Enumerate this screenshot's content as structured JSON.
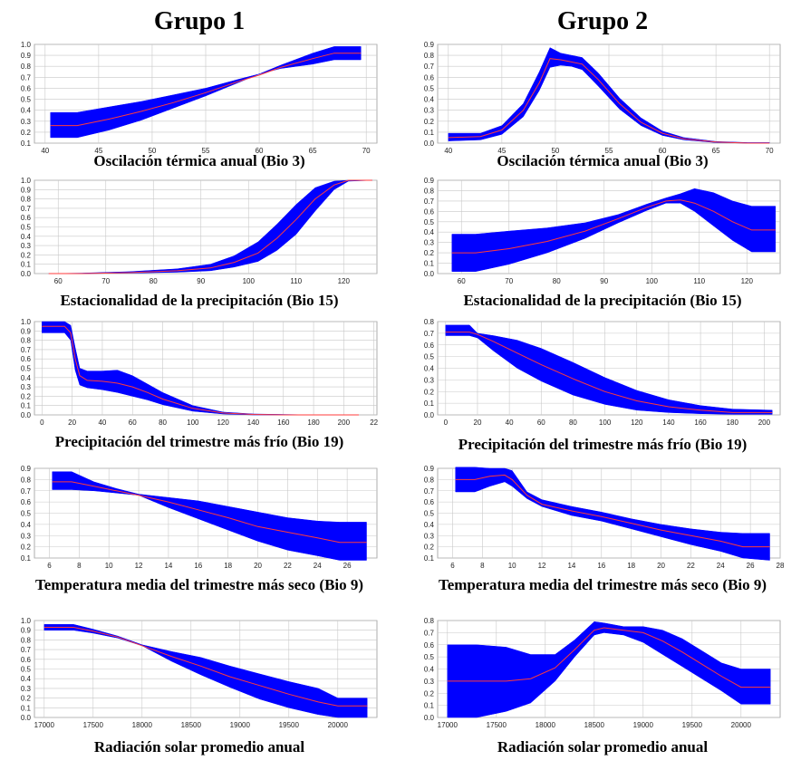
{
  "groups": [
    {
      "title": "Grupo 1"
    },
    {
      "title": "Grupo 2"
    }
  ],
  "colors": {
    "band": "#0000ff",
    "mean_line": "#ff3b3b",
    "grid": "#c8c8c8",
    "frame": "#999999"
  },
  "chart_data": [
    {
      "type": "area",
      "group": "Grupo 1",
      "label": "Oscilación térmica anual (Bio 3)",
      "xlim": [
        39,
        71
      ],
      "ylim": [
        0.1,
        1.0
      ],
      "xticks": [
        "40",
        "45",
        "50",
        "55",
        "60",
        "65",
        "70"
      ],
      "yticks": [
        "0.1",
        "0.2",
        "0.3",
        "0.4",
        "0.5",
        "0.6",
        "0.7",
        "0.8",
        "0.9",
        "1.0"
      ],
      "x": [
        40.5,
        43,
        46,
        49,
        52,
        55,
        58,
        60,
        62,
        65,
        67,
        69.5
      ],
      "mean": [
        0.26,
        0.26,
        0.32,
        0.39,
        0.47,
        0.56,
        0.66,
        0.72,
        0.79,
        0.87,
        0.92,
        0.92
      ],
      "lower": [
        0.15,
        0.15,
        0.22,
        0.31,
        0.42,
        0.53,
        0.65,
        0.73,
        0.78,
        0.82,
        0.86,
        0.86
      ],
      "upper": [
        0.38,
        0.38,
        0.43,
        0.48,
        0.54,
        0.6,
        0.68,
        0.73,
        0.81,
        0.92,
        0.98,
        0.98
      ]
    },
    {
      "type": "area",
      "group": "Grupo 2",
      "label": "Oscilación térmica anual  (Bio 3)",
      "xlim": [
        39,
        71
      ],
      "ylim": [
        0.0,
        0.9
      ],
      "xticks": [
        "40",
        "45",
        "50",
        "55",
        "60",
        "65",
        "70"
      ],
      "yticks": [
        "0.0",
        "0.1",
        "0.2",
        "0.3",
        "0.4",
        "0.5",
        "0.6",
        "0.7",
        "0.8",
        "0.9"
      ],
      "x": [
        40,
        43,
        45,
        47,
        48.5,
        49.5,
        50.5,
        51.5,
        52.5,
        54,
        56,
        58,
        60,
        62,
        65,
        68,
        70
      ],
      "mean": [
        0.05,
        0.06,
        0.12,
        0.3,
        0.55,
        0.77,
        0.76,
        0.74,
        0.72,
        0.58,
        0.36,
        0.19,
        0.09,
        0.04,
        0.01,
        0.0,
        0.0
      ],
      "lower": [
        0.02,
        0.03,
        0.08,
        0.24,
        0.48,
        0.69,
        0.71,
        0.7,
        0.67,
        0.52,
        0.31,
        0.16,
        0.07,
        0.03,
        0.005,
        0.0,
        0.0
      ],
      "upper": [
        0.09,
        0.09,
        0.16,
        0.36,
        0.65,
        0.87,
        0.82,
        0.8,
        0.78,
        0.64,
        0.41,
        0.23,
        0.11,
        0.05,
        0.015,
        0.005,
        0.005
      ]
    },
    {
      "type": "area",
      "group": "Grupo 1",
      "label": "Estacionalidad de la precipitación (Bio 15)",
      "xlim": [
        55,
        127
      ],
      "ylim": [
        0.0,
        1.0
      ],
      "xticks": [
        "60",
        "70",
        "80",
        "90",
        "100",
        "110",
        "120"
      ],
      "yticks": [
        "0.0",
        "0.1",
        "0.2",
        "0.3",
        "0.4",
        "0.5",
        "0.6",
        "0.7",
        "0.8",
        "0.9",
        "1.0"
      ],
      "x": [
        58,
        65,
        75,
        85,
        92,
        97,
        102,
        106,
        110,
        114,
        118,
        121,
        126
      ],
      "mean": [
        0.0,
        0.0,
        0.01,
        0.03,
        0.06,
        0.12,
        0.22,
        0.38,
        0.58,
        0.8,
        0.95,
        1.0,
        1.0
      ],
      "lower": [
        0.0,
        0.0,
        0.005,
        0.015,
        0.03,
        0.07,
        0.13,
        0.25,
        0.42,
        0.67,
        0.9,
        0.99,
        1.0
      ],
      "upper": [
        0.0,
        0.005,
        0.02,
        0.05,
        0.1,
        0.19,
        0.34,
        0.53,
        0.74,
        0.92,
        0.99,
        1.0,
        1.0
      ]
    },
    {
      "type": "area",
      "group": "Grupo 2",
      "label": "Estacionalidad de la precipitación (Bio 15)",
      "xlim": [
        55,
        127
      ],
      "ylim": [
        0.0,
        0.9
      ],
      "xticks": [
        "60",
        "70",
        "80",
        "90",
        "100",
        "110",
        "120"
      ],
      "yticks": [
        "0.0",
        "0.1",
        "0.2",
        "0.3",
        "0.4",
        "0.5",
        "0.6",
        "0.7",
        "0.8",
        "0.9"
      ],
      "x": [
        58,
        63,
        70,
        78,
        86,
        93,
        99,
        103,
        106,
        109,
        113,
        117,
        121,
        126
      ],
      "mean": [
        0.2,
        0.2,
        0.24,
        0.31,
        0.41,
        0.53,
        0.64,
        0.7,
        0.71,
        0.68,
        0.6,
        0.5,
        0.42,
        0.42
      ],
      "lower": [
        0.02,
        0.02,
        0.09,
        0.2,
        0.34,
        0.49,
        0.61,
        0.68,
        0.68,
        0.6,
        0.46,
        0.32,
        0.21,
        0.21
      ],
      "upper": [
        0.38,
        0.38,
        0.41,
        0.44,
        0.49,
        0.57,
        0.67,
        0.73,
        0.77,
        0.82,
        0.78,
        0.7,
        0.65,
        0.65
      ]
    },
    {
      "type": "area",
      "group": "Grupo 1",
      "label": "Precipitación del trimestre más frío (Bio 19)",
      "xlim": [
        -5,
        222
      ],
      "ylim": [
        0.0,
        1.0
      ],
      "xticks": [
        "0",
        "20",
        "40",
        "60",
        "80",
        "100",
        "120",
        "140",
        "160",
        "180",
        "200",
        "22"
      ],
      "yticks": [
        "0.0",
        "0.1",
        "0.2",
        "0.3",
        "0.4",
        "0.5",
        "0.6",
        "0.7",
        "0.8",
        "0.9",
        "1.0"
      ],
      "x": [
        0,
        15,
        19,
        22,
        25,
        30,
        40,
        50,
        60,
        70,
        80,
        100,
        120,
        140,
        160,
        180,
        210
      ],
      "mean": [
        0.95,
        0.95,
        0.88,
        0.6,
        0.42,
        0.37,
        0.36,
        0.34,
        0.3,
        0.24,
        0.17,
        0.07,
        0.02,
        0.005,
        0.0,
        0.0,
        0.0
      ],
      "lower": [
        0.88,
        0.88,
        0.8,
        0.48,
        0.32,
        0.29,
        0.27,
        0.24,
        0.2,
        0.16,
        0.11,
        0.04,
        0.01,
        0.0,
        0.0,
        0.0,
        0.0
      ],
      "upper": [
        1.0,
        1.0,
        0.96,
        0.72,
        0.5,
        0.47,
        0.47,
        0.48,
        0.42,
        0.33,
        0.24,
        0.1,
        0.03,
        0.01,
        0.005,
        0.0,
        0.0
      ]
    },
    {
      "type": "area",
      "group": "Grupo 2",
      "label": "Precipitación del  trimestre más frío (Bio 19)",
      "xlim": [
        -5,
        210
      ],
      "ylim": [
        0.0,
        0.8
      ],
      "xticks": [
        "0",
        "20",
        "40",
        "60",
        "80",
        "100",
        "120",
        "140",
        "160",
        "180",
        "200"
      ],
      "yticks": [
        "0.0",
        "0.1",
        "0.2",
        "0.3",
        "0.4",
        "0.5",
        "0.6",
        "0.7",
        "0.8"
      ],
      "x": [
        0,
        15,
        20,
        30,
        45,
        60,
        80,
        100,
        120,
        140,
        160,
        180,
        205
      ],
      "mean": [
        0.71,
        0.71,
        0.69,
        0.63,
        0.53,
        0.43,
        0.31,
        0.2,
        0.12,
        0.07,
        0.04,
        0.02,
        0.02
      ],
      "lower": [
        0.68,
        0.68,
        0.66,
        0.55,
        0.4,
        0.29,
        0.17,
        0.09,
        0.04,
        0.02,
        0.01,
        0.005,
        0.005
      ],
      "upper": [
        0.77,
        0.77,
        0.7,
        0.68,
        0.64,
        0.57,
        0.45,
        0.32,
        0.21,
        0.13,
        0.08,
        0.05,
        0.04
      ]
    },
    {
      "type": "area",
      "group": "Grupo 1",
      "label": "Temperatura media del trimestre más seco (Bio 9)",
      "xlim": [
        5,
        28
      ],
      "ylim": [
        0.1,
        0.9
      ],
      "xticks": [
        "6",
        "8",
        "10",
        "12",
        "14",
        "16",
        "18",
        "20",
        "22",
        "24",
        "26"
      ],
      "yticks": [
        "0.1",
        "0.2",
        "0.3",
        "0.4",
        "0.5",
        "0.6",
        "0.7",
        "0.8",
        "0.9"
      ],
      "x": [
        6.2,
        7.5,
        9,
        10.5,
        12,
        14,
        16,
        18,
        20,
        22,
        24,
        25.5,
        27.3
      ],
      "mean": [
        0.78,
        0.78,
        0.74,
        0.7,
        0.66,
        0.6,
        0.53,
        0.46,
        0.38,
        0.33,
        0.28,
        0.24,
        0.24
      ],
      "lower": [
        0.71,
        0.71,
        0.7,
        0.68,
        0.66,
        0.55,
        0.45,
        0.35,
        0.25,
        0.17,
        0.12,
        0.08,
        0.08
      ],
      "upper": [
        0.87,
        0.87,
        0.78,
        0.72,
        0.67,
        0.64,
        0.61,
        0.56,
        0.51,
        0.46,
        0.43,
        0.42,
        0.42
      ]
    },
    {
      "type": "area",
      "group": "Grupo 2",
      "label": "Temperatura media del trimestre más seco (Bio 9)",
      "xlim": [
        5,
        28
      ],
      "ylim": [
        0.1,
        0.9
      ],
      "xticks": [
        "6",
        "8",
        "10",
        "12",
        "14",
        "16",
        "18",
        "20",
        "22",
        "24",
        "26",
        "28"
      ],
      "yticks": [
        "0.1",
        "0.2",
        "0.3",
        "0.4",
        "0.5",
        "0.6",
        "0.7",
        "0.8",
        "0.9"
      ],
      "x": [
        6.2,
        7.5,
        8.5,
        9.5,
        10,
        11,
        12,
        14,
        16,
        18,
        20,
        22,
        24,
        25.5,
        27.3
      ],
      "mean": [
        0.8,
        0.8,
        0.83,
        0.84,
        0.8,
        0.66,
        0.58,
        0.52,
        0.47,
        0.41,
        0.35,
        0.3,
        0.25,
        0.2,
        0.2
      ],
      "lower": [
        0.69,
        0.69,
        0.74,
        0.78,
        0.74,
        0.63,
        0.56,
        0.48,
        0.43,
        0.36,
        0.29,
        0.22,
        0.16,
        0.1,
        0.08
      ],
      "upper": [
        0.91,
        0.91,
        0.9,
        0.9,
        0.88,
        0.69,
        0.62,
        0.56,
        0.51,
        0.45,
        0.4,
        0.36,
        0.33,
        0.32,
        0.32
      ]
    },
    {
      "type": "area",
      "group": "Grupo 1",
      "label": "Radiación solar promedio anual",
      "xlim": [
        16900,
        20400
      ],
      "ylim": [
        0.0,
        1.0
      ],
      "xticks": [
        "17000",
        "17500",
        "18000",
        "18500",
        "19000",
        "19500",
        "20000"
      ],
      "yticks": [
        "0.0",
        "0.1",
        "0.2",
        "0.3",
        "0.4",
        "0.5",
        "0.6",
        "0.7",
        "0.8",
        "0.9",
        "1.0"
      ],
      "x": [
        17000,
        17300,
        17500,
        17750,
        18000,
        18300,
        18600,
        18900,
        19200,
        19500,
        19800,
        20000,
        20300
      ],
      "mean": [
        0.93,
        0.93,
        0.89,
        0.83,
        0.74,
        0.63,
        0.53,
        0.42,
        0.33,
        0.24,
        0.16,
        0.12,
        0.12
      ],
      "lower": [
        0.9,
        0.9,
        0.87,
        0.82,
        0.74,
        0.58,
        0.44,
        0.31,
        0.19,
        0.1,
        0.03,
        0.0,
        0.0
      ],
      "upper": [
        0.96,
        0.96,
        0.91,
        0.84,
        0.75,
        0.68,
        0.62,
        0.53,
        0.45,
        0.37,
        0.3,
        0.2,
        0.2
      ]
    },
    {
      "type": "area",
      "group": "Grupo 2",
      "label": "Radiación solar promedio anual",
      "xlim": [
        16900,
        20400
      ],
      "ylim": [
        0.0,
        0.8
      ],
      "xticks": [
        "17000",
        "17500",
        "18000",
        "18500",
        "19000",
        "19500",
        "20000"
      ],
      "yticks": [
        "0.0",
        "0.1",
        "0.2",
        "0.3",
        "0.4",
        "0.5",
        "0.6",
        "0.7",
        "0.8"
      ],
      "x": [
        17000,
        17300,
        17600,
        17850,
        18100,
        18300,
        18500,
        18600,
        18800,
        19000,
        19200,
        19400,
        19600,
        19800,
        20000,
        20300
      ],
      "mean": [
        0.3,
        0.3,
        0.3,
        0.32,
        0.41,
        0.56,
        0.72,
        0.74,
        0.72,
        0.7,
        0.63,
        0.54,
        0.44,
        0.34,
        0.25,
        0.25
      ],
      "lower": [
        0.0,
        0.0,
        0.05,
        0.12,
        0.3,
        0.5,
        0.68,
        0.7,
        0.68,
        0.62,
        0.52,
        0.42,
        0.32,
        0.22,
        0.11,
        0.11
      ],
      "upper": [
        0.6,
        0.6,
        0.58,
        0.52,
        0.52,
        0.64,
        0.79,
        0.78,
        0.75,
        0.75,
        0.72,
        0.65,
        0.55,
        0.45,
        0.4,
        0.4
      ]
    }
  ]
}
